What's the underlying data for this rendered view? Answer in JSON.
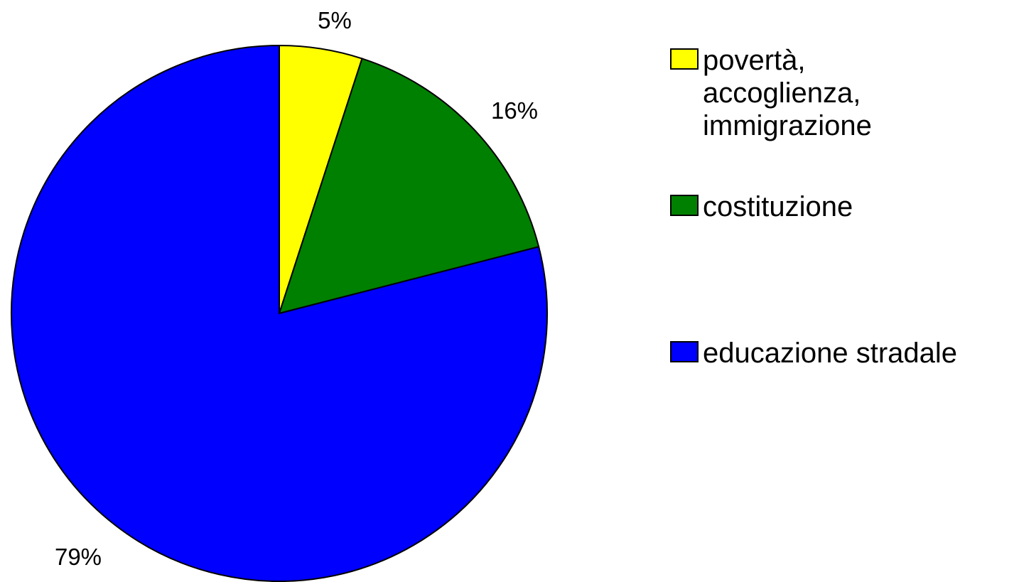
{
  "chart_data": {
    "type": "pie",
    "title": "",
    "slices": [
      {
        "label": "povertà,\naccoglienza,\nimmigrazione",
        "value": 5,
        "display": "5%",
        "color": "#FFFF00"
      },
      {
        "label": "costituzione",
        "value": 16,
        "display": "16%",
        "color": "#008000"
      },
      {
        "label": "educazione stradale",
        "value": 79,
        "display": "79%",
        "color": "#0000FF"
      }
    ],
    "start_angle": "12 o'clock",
    "direction": "clockwise",
    "legend": "right",
    "slice_border_color": "#000000"
  }
}
